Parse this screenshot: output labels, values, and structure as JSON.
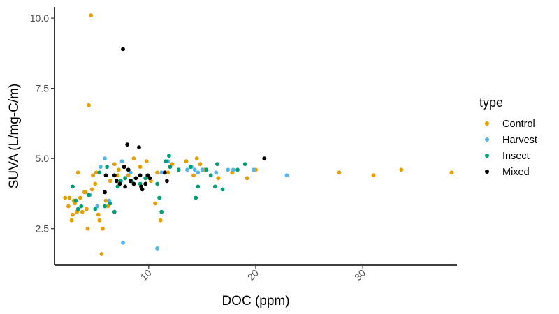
{
  "chart_data": {
    "type": "scatter",
    "xlabel": "DOC (ppm)",
    "ylabel": "SUVA (L/mg-C/m)",
    "xlim": [
      1.2,
      38.8
    ],
    "ylim": [
      1.2,
      10.4
    ],
    "x_ticks": [
      10,
      20,
      30
    ],
    "x_tick_labels": [
      "10",
      "20",
      "30"
    ],
    "y_ticks": [
      2.5,
      5.0,
      7.5,
      10.0
    ],
    "y_tick_labels": [
      "2.5",
      "5.0",
      "7.5",
      "10.0"
    ],
    "grid": false,
    "legend": {
      "title": "type",
      "placement": "right"
    },
    "series": [
      {
        "name": "Control",
        "color": "#E69F00",
        "points": [
          [
            2.2,
            3.6
          ],
          [
            2.5,
            3.3
          ],
          [
            2.8,
            2.8
          ],
          [
            2.9,
            3.0
          ],
          [
            3.0,
            3.5
          ],
          [
            3.3,
            3.1
          ],
          [
            3.4,
            4.5
          ],
          [
            3.6,
            3.6
          ],
          [
            3.8,
            3.1
          ],
          [
            4.0,
            3.8
          ],
          [
            4.1,
            3.8
          ],
          [
            4.2,
            3.2
          ],
          [
            4.3,
            2.5
          ],
          [
            4.4,
            6.9
          ],
          [
            4.6,
            10.1
          ],
          [
            4.7,
            3.9
          ],
          [
            4.8,
            4.4
          ],
          [
            5.0,
            4.1
          ],
          [
            5.1,
            4.5
          ],
          [
            5.3,
            3.0
          ],
          [
            5.4,
            2.8
          ],
          [
            5.6,
            1.6
          ],
          [
            5.7,
            2.5
          ],
          [
            6.0,
            3.5
          ],
          [
            6.2,
            3.3
          ],
          [
            6.4,
            4.2
          ],
          [
            6.8,
            4.8
          ],
          [
            7.1,
            4.4
          ],
          [
            7.2,
            4.6
          ],
          [
            7.7,
            4.7
          ],
          [
            8.1,
            4.4
          ],
          [
            8.6,
            5.0
          ],
          [
            9.2,
            4.7
          ],
          [
            9.8,
            4.9
          ],
          [
            10.2,
            4.2
          ],
          [
            10.6,
            3.4
          ],
          [
            10.8,
            4.5
          ],
          [
            11.1,
            2.8
          ],
          [
            11.8,
            4.5
          ],
          [
            12.2,
            4.8
          ],
          [
            13.5,
            4.9
          ],
          [
            14.2,
            4.4
          ],
          [
            14.5,
            5.0
          ],
          [
            14.8,
            4.8
          ],
          [
            15.2,
            4.6
          ],
          [
            16.5,
            4.3
          ],
          [
            17.8,
            4.5
          ],
          [
            19.2,
            4.3
          ],
          [
            20.0,
            4.6
          ],
          [
            27.8,
            4.5
          ],
          [
            31.0,
            4.4
          ],
          [
            33.6,
            4.6
          ],
          [
            38.3,
            4.5
          ],
          [
            2.6,
            3.6
          ],
          [
            3.1,
            3.4
          ]
        ]
      },
      {
        "name": "Harvest",
        "color": "#56B4E9",
        "points": [
          [
            4.5,
            3.7
          ],
          [
            5.2,
            3.3
          ],
          [
            5.5,
            4.7
          ],
          [
            5.9,
            5.0
          ],
          [
            6.3,
            3.5
          ],
          [
            7.5,
            4.9
          ],
          [
            7.6,
            2.0
          ],
          [
            8.3,
            4.5
          ],
          [
            10.8,
            1.8
          ],
          [
            11.2,
            4.5
          ],
          [
            11.8,
            4.9
          ],
          [
            13.6,
            4.6
          ],
          [
            14.0,
            4.7
          ],
          [
            14.3,
            4.6
          ],
          [
            14.6,
            4.5
          ],
          [
            15.0,
            4.6
          ],
          [
            16.3,
            4.5
          ],
          [
            17.4,
            4.6
          ],
          [
            17.9,
            4.6
          ],
          [
            19.8,
            4.6
          ],
          [
            22.9,
            4.4
          ]
        ]
      },
      {
        "name": "Insect",
        "color": "#009E73",
        "points": [
          [
            2.9,
            4.0
          ],
          [
            3.2,
            3.5
          ],
          [
            3.4,
            3.2
          ],
          [
            3.7,
            3.3
          ],
          [
            4.4,
            3.7
          ],
          [
            5.0,
            3.2
          ],
          [
            5.4,
            4.5
          ],
          [
            5.9,
            3.3
          ],
          [
            6.1,
            4.7
          ],
          [
            6.4,
            3.4
          ],
          [
            6.8,
            3.1
          ],
          [
            7.1,
            4.0
          ],
          [
            7.4,
            4.2
          ],
          [
            7.8,
            4.3
          ],
          [
            8.4,
            4.2
          ],
          [
            9.2,
            4.1
          ],
          [
            9.7,
            4.3
          ],
          [
            10.8,
            4.1
          ],
          [
            11.0,
            3.6
          ],
          [
            11.2,
            3.1
          ],
          [
            11.6,
            4.9
          ],
          [
            11.9,
            5.1
          ],
          [
            12.0,
            4.7
          ],
          [
            12.8,
            4.6
          ],
          [
            13.9,
            4.7
          ],
          [
            14.4,
            3.6
          ],
          [
            14.6,
            4.0
          ],
          [
            15.4,
            4.6
          ],
          [
            15.8,
            4.4
          ],
          [
            16.2,
            4.0
          ],
          [
            16.4,
            4.8
          ],
          [
            16.9,
            3.9
          ],
          [
            18.3,
            4.6
          ],
          [
            19.0,
            4.8
          ]
        ]
      },
      {
        "name": "Mixed",
        "color": "#000000",
        "points": [
          [
            5.9,
            3.8
          ],
          [
            6.0,
            4.4
          ],
          [
            6.8,
            4.4
          ],
          [
            7.0,
            4.2
          ],
          [
            7.3,
            4.1
          ],
          [
            7.6,
            8.9
          ],
          [
            7.7,
            4.7
          ],
          [
            7.8,
            4.0
          ],
          [
            8.0,
            5.5
          ],
          [
            8.1,
            4.6
          ],
          [
            8.3,
            4.2
          ],
          [
            8.6,
            4.1
          ],
          [
            8.8,
            4.3
          ],
          [
            9.1,
            5.4
          ],
          [
            9.2,
            4.4
          ],
          [
            9.3,
            4.0
          ],
          [
            9.4,
            3.9
          ],
          [
            9.7,
            4.1
          ],
          [
            9.9,
            4.4
          ],
          [
            10.1,
            4.3
          ],
          [
            11.5,
            4.5
          ],
          [
            11.7,
            4.2
          ],
          [
            20.8,
            5.0
          ]
        ]
      }
    ]
  }
}
